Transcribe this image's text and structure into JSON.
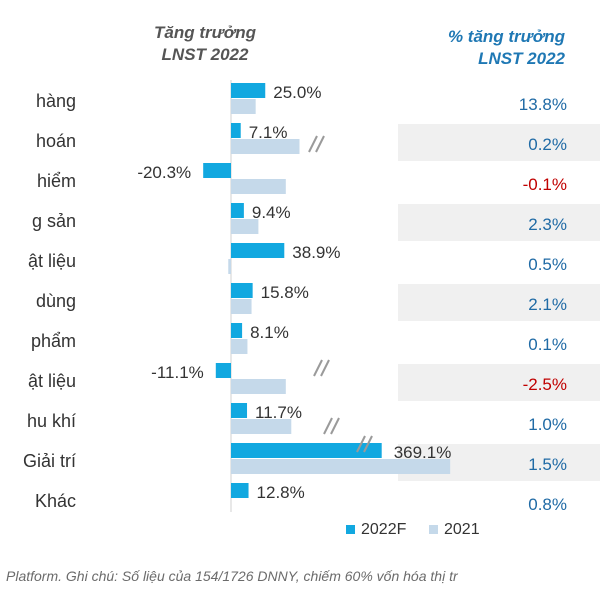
{
  "headers": {
    "left_line1": "Tăng trưởng",
    "left_line2": "LNST 2022",
    "right_line1": "% tăng trưởng",
    "right_line2": "LNST 2022"
  },
  "footnote": "Platform. Ghi chú: Số liệu của 154/1726 DNNY, chiếm 60% vốn hóa thị tr",
  "colors": {
    "series_2022F": "#12a8e0",
    "series_2021": "#c5d9ea",
    "positive_pct": "#1f6aa5",
    "negative_pct": "#c00000",
    "stripe": "#f0f0f0"
  },
  "chart_data": {
    "type": "bar",
    "orientation": "horizontal",
    "categories": [
      "hàng",
      "hoán",
      "hiểm",
      "g sản",
      "ật liệu",
      "dùng",
      "phẩm",
      "ật liệu",
      "hu khí",
      "Giải trí",
      "Khác"
    ],
    "series": [
      {
        "name": "2022F",
        "values": [
          25.0,
          7.1,
          -20.3,
          9.4,
          38.9,
          15.8,
          8.1,
          -11.1,
          11.7,
          369.1,
          12.8
        ]
      },
      {
        "name": "2021",
        "values": [
          18,
          50,
          40,
          20,
          -2,
          15,
          12,
          40,
          44,
          160,
          0
        ]
      }
    ],
    "data_labels": [
      "25.0%",
      "7.1%",
      "-20.3%",
      "9.4%",
      "38.9%",
      "15.8%",
      "8.1%",
      "-11.1%",
      "11.7%",
      "369.1%",
      "12.8%"
    ],
    "broken_axis_categories": [
      "hoán",
      "ật liệu",
      "hu khí",
      "Giải trí"
    ],
    "contribution": [
      "13.8%",
      "0.2%",
      "-0.1%",
      "2.3%",
      "0.5%",
      "2.1%",
      "0.1%",
      "-2.5%",
      "1.0%",
      "1.5%",
      "0.8%"
    ],
    "contribution_sign": [
      1,
      1,
      -1,
      1,
      1,
      1,
      1,
      -1,
      1,
      1,
      1
    ],
    "legend": [
      "2022F",
      "2021"
    ],
    "legend_position": "bottom"
  }
}
